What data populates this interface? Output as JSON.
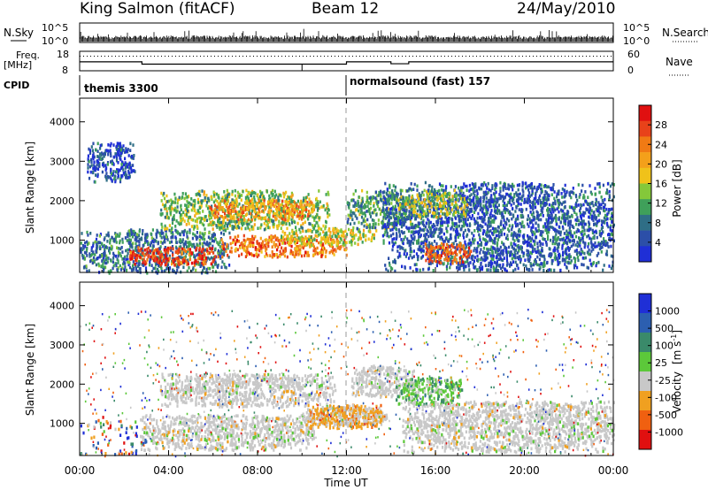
{
  "header": {
    "station": "King Salmon (fitACF)",
    "beam": "Beam 12",
    "date": "24/May/2010"
  },
  "nsky_panel": {
    "left_label": "N.Sky",
    "right_label": "N.Search",
    "left_ticks": [
      "10^5",
      "10^0"
    ],
    "right_ticks": [
      "10^5",
      "10^0"
    ]
  },
  "freq_panel": {
    "left_label_line1": "Freq.",
    "left_label_line2": "[MHz]",
    "right_label": "Nave",
    "left_ticks": [
      "18",
      "8"
    ],
    "right_ticks": [
      "60",
      "0"
    ]
  },
  "cpid": {
    "label": "CPID",
    "segments": [
      {
        "start_hour": 0,
        "end_hour": 12,
        "text": "themis 3300"
      },
      {
        "start_hour": 12,
        "end_hour": 24,
        "text": "normalsound (fast) 157"
      }
    ]
  },
  "axes": {
    "ylabel": "Slant Range [km]",
    "xlabel": "Time UT",
    "yticks": [
      "1000",
      "2000",
      "3000",
      "4000"
    ],
    "xticks": [
      "00:00",
      "04:00",
      "08:00",
      "12:00",
      "16:00",
      "20:00",
      "00:00"
    ]
  },
  "colorbars": {
    "power": {
      "title": "Power [dB]",
      "tick_labels": [
        "4",
        "8",
        "12",
        "16",
        "20",
        "24",
        "28"
      ],
      "colors": [
        "#1f2fd6",
        "#2c4fa8",
        "#2f6e86",
        "#3fa05a",
        "#84c83a",
        "#f0c21a",
        "#f4a01a",
        "#f07a14",
        "#e8421a",
        "#e01010"
      ]
    },
    "velocity": {
      "title": "Velocity",
      "unit": "[m s",
      "unit_sup": "-1",
      "unit_close": "]",
      "tick_labels": [
        "1000",
        "500",
        "100",
        "25",
        "-25",
        "-100",
        "-500",
        "-1000"
      ],
      "colors": [
        "#1f2fd6",
        "#2c5fb0",
        "#3a8a6a",
        "#5cc83a",
        "#c8c8c8",
        "#f0a020",
        "#f06010",
        "#e01010"
      ]
    }
  },
  "chart_data": {
    "type": "heatmap",
    "x_range_hours": [
      0,
      24
    ],
    "y_range_km": [
      180,
      4600
    ],
    "nsky_freq": {
      "freq_mhz_segments": [
        {
          "start": 0,
          "end": 2.8,
          "value": 12.6
        },
        {
          "start": 2.8,
          "end": 12,
          "value": 11.4
        },
        {
          "start": 12,
          "end": 14,
          "value": 12.6
        },
        {
          "start": 14,
          "end": 14.8,
          "value": 11.6
        },
        {
          "start": 14.8,
          "end": 24,
          "value": 12.6
        }
      ],
      "nave_dotted": 45
    },
    "power_blobs": [
      {
        "t0": 0.0,
        "t1": 6.7,
        "r0": 200,
        "r1": 1300,
        "level": 0.25
      },
      {
        "t0": 2.2,
        "t1": 6.2,
        "r0": 400,
        "r1": 850,
        "level": 0.85
      },
      {
        "t0": 3.6,
        "t1": 11.2,
        "r0": 1300,
        "r1": 2300,
        "level": 0.45
      },
      {
        "t0": 5.8,
        "t1": 10.5,
        "r0": 1550,
        "r1": 2050,
        "level": 0.7
      },
      {
        "t0": 6.3,
        "t1": 12.0,
        "r0": 600,
        "r1": 1150,
        "level": 0.75
      },
      {
        "t0": 9.0,
        "t1": 13.3,
        "r0": 900,
        "r1": 1350,
        "level": 0.5
      },
      {
        "t0": 12.0,
        "t1": 15.0,
        "r0": 1300,
        "r1": 2300,
        "level": 0.35
      },
      {
        "t0": 13.6,
        "t1": 24.0,
        "r0": 250,
        "r1": 2500,
        "level": 0.2
      },
      {
        "t0": 15.5,
        "t1": 17.6,
        "r0": 450,
        "r1": 950,
        "level": 0.8
      },
      {
        "t0": 14.2,
        "t1": 17.4,
        "r0": 1600,
        "r1": 2300,
        "level": 0.45
      },
      {
        "t0": 0.3,
        "t1": 2.5,
        "r0": 2500,
        "r1": 3500,
        "level": 0.15
      }
    ],
    "velocity_regions": [
      {
        "t0": 2.7,
        "t1": 10.5,
        "r0": 350,
        "r1": 1250,
        "cls": "grey"
      },
      {
        "t0": 3.6,
        "t1": 11.5,
        "r0": 1450,
        "r1": 2300,
        "cls": "grey"
      },
      {
        "t0": 10.0,
        "t1": 13.8,
        "r0": 1000,
        "r1": 1450,
        "cls": "grey"
      },
      {
        "t0": 10.2,
        "t1": 13.6,
        "r0": 900,
        "r1": 1500,
        "cls": "orange"
      },
      {
        "t0": 12.2,
        "t1": 15.0,
        "r0": 1700,
        "r1": 2500,
        "cls": "grey"
      },
      {
        "t0": 14.2,
        "t1": 17.2,
        "r0": 1500,
        "r1": 2200,
        "cls": "green"
      },
      {
        "t0": 14.5,
        "t1": 24.0,
        "r0": 300,
        "r1": 1600,
        "cls": "grey"
      },
      {
        "t0": 0.0,
        "t1": 3.0,
        "r0": 200,
        "r1": 1200,
        "cls": "sparse"
      }
    ]
  }
}
